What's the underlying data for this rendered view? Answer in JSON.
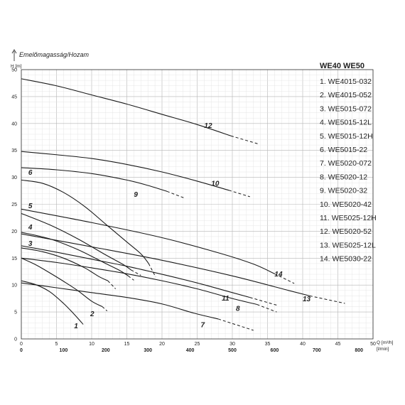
{
  "chart_data": {
    "type": "line",
    "title": "WE40 WE50",
    "y_title": "Emelőmagasság/Hozam",
    "y_unit": "H [m]",
    "x_unit_primary": "Q [m³/h]",
    "x_unit_secondary": "[l/min]",
    "xlim": [
      0,
      50
    ],
    "ylim": [
      0,
      50
    ],
    "x_ticks": [
      "0",
      "5",
      "10",
      "15",
      "20",
      "25",
      "30",
      "35",
      "40",
      "45",
      "50"
    ],
    "y_ticks": [
      "0",
      "5",
      "10",
      "15",
      "20",
      "25",
      "30",
      "35",
      "40",
      "45",
      "50"
    ],
    "secondary_ticks": [
      {
        "q": 0,
        "label": "0"
      },
      {
        "q": 6,
        "label": "100"
      },
      {
        "q": 12,
        "label": "200"
      },
      {
        "q": 18,
        "label": "300"
      },
      {
        "q": 24,
        "label": "400"
      },
      {
        "q": 30,
        "label": "500"
      },
      {
        "q": 36,
        "label": "600"
      },
      {
        "q": 42,
        "label": "700"
      },
      {
        "q": 48,
        "label": "800"
      }
    ],
    "grid": true,
    "legend_position": "right",
    "series": [
      {
        "name": "1. WE4015-032",
        "label": "1",
        "label_at": [
          7.5,
          2.0
        ],
        "solid": [
          [
            0,
            10.8
          ],
          [
            2,
            10.1
          ],
          [
            4,
            8.8
          ],
          [
            6,
            6.6
          ],
          [
            7.5,
            4.6
          ],
          [
            8.6,
            3.0
          ]
        ],
        "dashed": [
          [
            8.6,
            3.0
          ],
          [
            8.8,
            2.7
          ]
        ]
      },
      {
        "name": "2. WE4015-052",
        "label": "2",
        "label_at": [
          9.8,
          4.2
        ],
        "solid": [
          [
            0,
            15
          ],
          [
            2,
            13.8
          ],
          [
            4,
            12.3
          ],
          [
            6,
            10.7
          ],
          [
            8,
            9.0
          ],
          [
            10,
            7.0
          ],
          [
            11.5,
            6.0
          ]
        ],
        "dashed": [
          [
            11.5,
            6.0
          ],
          [
            12.2,
            5.2
          ]
        ]
      },
      {
        "name": "3. WE5015-072",
        "label": "3",
        "label_at": [
          1.0,
          17.3
        ],
        "solid": [
          [
            0,
            16.9
          ],
          [
            3,
            16.2
          ],
          [
            6,
            15.0
          ],
          [
            9,
            13.2
          ],
          [
            11,
            11.6
          ],
          [
            12.3,
            10.8
          ]
        ],
        "dashed": [
          [
            12.3,
            10.8
          ],
          [
            13.4,
            9.3
          ]
        ]
      },
      {
        "name": "4. WE5015-12L",
        "label": "4",
        "label_at": [
          1.0,
          20.3
        ],
        "solid": [
          [
            0,
            19.8
          ],
          [
            4,
            18.6
          ],
          [
            8,
            16.6
          ],
          [
            12,
            14.0
          ],
          [
            14,
            12.7
          ],
          [
            15.2,
            11.7
          ]
        ],
        "dashed": [
          [
            15.2,
            11.7
          ],
          [
            16.0,
            10.9
          ]
        ]
      },
      {
        "name": "5. WE5015-12H",
        "label": "5",
        "label_at": [
          1.0,
          24.3
        ],
        "solid": [
          [
            0,
            23.3
          ],
          [
            4,
            21.2
          ],
          [
            8,
            18.6
          ],
          [
            12,
            15.6
          ],
          [
            14.5,
            13.8
          ],
          [
            15.6,
            12.8
          ]
        ],
        "dashed": [
          [
            15.6,
            12.8
          ],
          [
            17,
            11.8
          ]
        ]
      },
      {
        "name": "6. WE5015-22",
        "label": "6",
        "label_at": [
          1.0,
          30.5
        ],
        "solid": [
          [
            0,
            29.5
          ],
          [
            3,
            28.9
          ],
          [
            6,
            27.2
          ],
          [
            9,
            24.6
          ],
          [
            12,
            21.3
          ],
          [
            15,
            18.0
          ],
          [
            17,
            15.8
          ],
          [
            18.1,
            14.0
          ]
        ],
        "dashed": [
          [
            18.1,
            14.0
          ],
          [
            19.1,
            11.5
          ]
        ]
      },
      {
        "name": "7. WE5020-072",
        "label": "7",
        "label_at": [
          25.5,
          2.2
        ],
        "solid": [
          [
            0,
            10.4
          ],
          [
            5,
            9.5
          ],
          [
            10,
            8.6
          ],
          [
            15,
            7.7
          ],
          [
            20,
            6.5
          ],
          [
            24.5,
            4.8
          ],
          [
            28,
            3.7
          ]
        ],
        "dashed": [
          [
            28,
            3.7
          ],
          [
            33.0,
            1.6
          ]
        ]
      },
      {
        "name": "8. WE5020-12",
        "label": "8",
        "label_at": [
          30.5,
          5.2
        ],
        "solid": [
          [
            0,
            15
          ],
          [
            5,
            14.2
          ],
          [
            10,
            13.2
          ],
          [
            15,
            12.1
          ],
          [
            20,
            10.8
          ],
          [
            25,
            9.3
          ],
          [
            30,
            7.5
          ],
          [
            33.5,
            6.4
          ]
        ],
        "dashed": [
          [
            33.5,
            6.4
          ],
          [
            36.3,
            5.0
          ]
        ]
      },
      {
        "name": "9. WE5020-32",
        "label": "9",
        "label_at": [
          16.0,
          26.4
        ],
        "solid": [
          [
            0,
            31.8
          ],
          [
            5,
            31.4
          ],
          [
            10,
            30.7
          ],
          [
            15,
            29.5
          ],
          [
            18,
            28.5
          ],
          [
            20.7,
            27.4
          ]
        ],
        "dashed": [
          [
            20.7,
            27.4
          ],
          [
            23.3,
            26.1
          ]
        ]
      },
      {
        "name": "10. WE5020-42",
        "label": "10",
        "label_at": [
          27.0,
          28.4
        ],
        "solid": [
          [
            0,
            34.8
          ],
          [
            5,
            34.2
          ],
          [
            10,
            33.5
          ],
          [
            15,
            32.4
          ],
          [
            20,
            31.0
          ],
          [
            25,
            29.3
          ],
          [
            29.5,
            27.6
          ]
        ],
        "dashed": [
          [
            29.5,
            27.6
          ],
          [
            32.5,
            26.4
          ]
        ]
      },
      {
        "name": "11. WE5025-12H",
        "label": "11",
        "label_at": [
          28.5,
          7.1
        ],
        "solid": [
          [
            0,
            17.3
          ],
          [
            5,
            16.1
          ],
          [
            10,
            14.8
          ],
          [
            15,
            13.5
          ],
          [
            20,
            12.0
          ],
          [
            25,
            10.4
          ],
          [
            30,
            8.6
          ],
          [
            32.5,
            7.7
          ]
        ],
        "dashed": [
          [
            32.5,
            7.7
          ],
          [
            36.5,
            6.2
          ]
        ]
      },
      {
        "name": "12. WE5020-52",
        "label": "12",
        "label_at": [
          26.0,
          39.2
        ],
        "solid": [
          [
            0,
            48.3
          ],
          [
            5,
            47.0
          ],
          [
            10,
            45.3
          ],
          [
            15,
            43.6
          ],
          [
            20,
            41.7
          ],
          [
            25,
            39.8
          ],
          [
            29.8,
            37.7
          ]
        ],
        "dashed": [
          [
            29.8,
            37.7
          ],
          [
            33.7,
            36.2
          ]
        ]
      },
      {
        "name": "13. WE5025-12L",
        "label": "13",
        "label_at": [
          40.0,
          7.0
        ],
        "solid": [
          [
            0,
            19.5
          ],
          [
            10,
            17.1
          ],
          [
            20,
            14.6
          ],
          [
            30,
            11.7
          ],
          [
            38,
            9.0
          ],
          [
            41,
            8.0
          ]
        ],
        "dashed": [
          [
            41,
            8.0
          ],
          [
            46,
            6.6
          ]
        ]
      },
      {
        "name": "14. WE5030-22",
        "label": "14",
        "label_at": [
          36.0,
          11.6
        ],
        "solid": [
          [
            0,
            24.1
          ],
          [
            10,
            21.6
          ],
          [
            20,
            18.8
          ],
          [
            28,
            16.0
          ],
          [
            33,
            13.9
          ],
          [
            36,
            12.1
          ]
        ],
        "dashed": [
          [
            36,
            12.1
          ],
          [
            38.8,
            10.3
          ]
        ]
      }
    ]
  }
}
